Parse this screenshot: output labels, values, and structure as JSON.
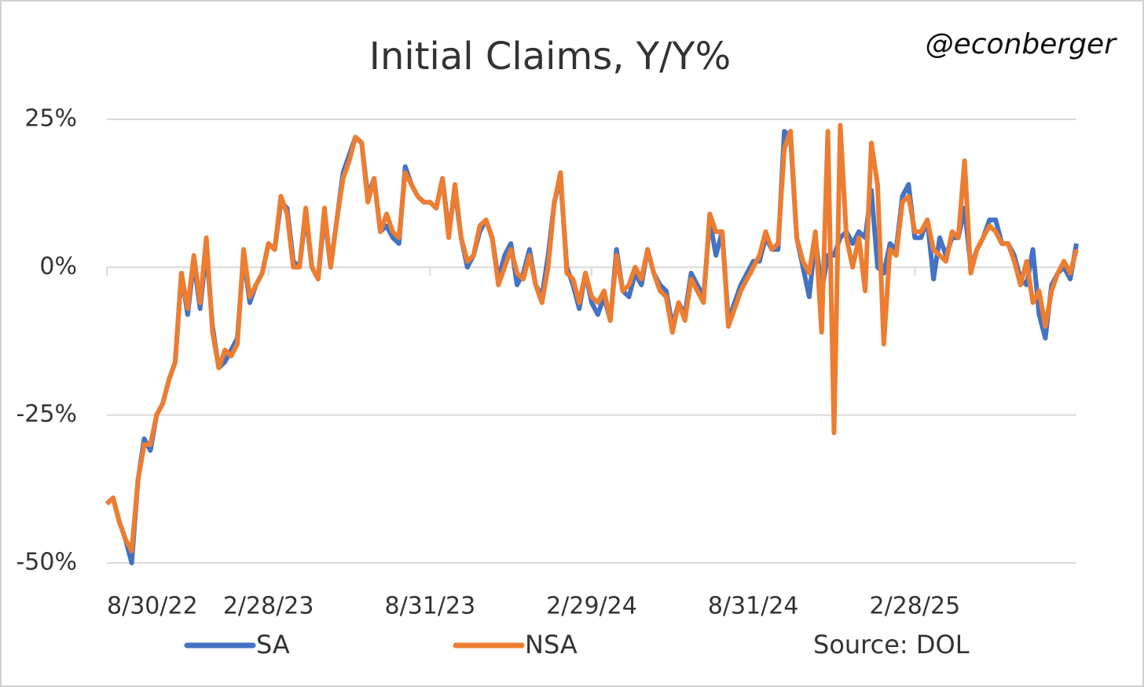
{
  "chart_data": {
    "type": "line",
    "title": "Initial Claims, Y/Y%",
    "annotations": [
      "@econberger",
      "Source: DOL"
    ],
    "categories": [
      "8/30/22",
      null,
      null,
      null,
      null,
      null,
      null,
      null,
      null,
      null,
      null,
      null,
      null,
      null,
      null,
      null,
      null,
      null,
      null,
      null,
      null,
      null,
      null,
      null,
      null,
      null,
      "2/28/23",
      null,
      null,
      null,
      null,
      null,
      null,
      null,
      null,
      null,
      null,
      null,
      null,
      null,
      null,
      null,
      null,
      null,
      null,
      null,
      null,
      null,
      null,
      null,
      null,
      null,
      "8/31/23",
      null,
      null,
      null,
      null,
      null,
      null,
      null,
      null,
      null,
      null,
      null,
      null,
      null,
      null,
      null,
      null,
      null,
      null,
      null,
      null,
      null,
      null,
      null,
      null,
      null,
      "2/29/24",
      null,
      null,
      null,
      null,
      null,
      null,
      null,
      null,
      null,
      null,
      null,
      null,
      null,
      null,
      null,
      null,
      null,
      null,
      null,
      null,
      null,
      null,
      null,
      null,
      null,
      "8/31/24",
      null,
      null,
      null,
      null,
      null,
      null,
      null,
      null,
      null,
      null,
      null,
      null,
      null,
      null,
      null,
      null,
      null,
      null,
      null,
      null,
      null,
      null,
      null,
      null,
      null,
      "2/28/25",
      null,
      null,
      null,
      null,
      null,
      null,
      null,
      null,
      null,
      null,
      null,
      null,
      null,
      null,
      null,
      null,
      null,
      null,
      null,
      null,
      null,
      null,
      null,
      null,
      null,
      null
    ],
    "series": [
      {
        "name": "SA",
        "color": "#4472c4",
        "values": [
          -40,
          -39,
          -43,
          -46,
          -50,
          -36,
          -29,
          -31,
          -25,
          -23,
          -19,
          -16,
          -1,
          -8,
          1,
          -7,
          3,
          -10,
          -17,
          -16,
          -14,
          -12,
          2,
          -6,
          -3,
          -1,
          4,
          3,
          11,
          10,
          1,
          0,
          9,
          0,
          -2,
          9,
          0,
          8,
          16,
          19,
          22,
          21,
          12,
          15,
          6,
          7,
          5,
          4,
          17,
          14,
          12,
          11,
          11,
          10,
          15,
          6,
          13,
          5,
          0,
          2,
          6,
          8,
          5,
          -2,
          2,
          4,
          -3,
          -1,
          3,
          -3,
          -5,
          2,
          11,
          15,
          0,
          -3,
          -7,
          -1,
          -6,
          -8,
          -5,
          -9,
          3,
          -4,
          -5,
          -1,
          -3,
          3,
          -1,
          -3,
          -4,
          -10,
          -6,
          -8,
          -1,
          -3,
          -5,
          8,
          2,
          6,
          -9,
          -6,
          -3,
          -1,
          1,
          1,
          5,
          3,
          3,
          23,
          22,
          5,
          0,
          -5,
          5,
          -4,
          2,
          2,
          5,
          6,
          4,
          6,
          5,
          13,
          0,
          -1,
          4,
          3,
          12,
          14,
          5,
          5,
          8,
          -2,
          5,
          2,
          5,
          5,
          10,
          0,
          3,
          5,
          8,
          8,
          4,
          4,
          2,
          -2,
          -3,
          3,
          -8,
          -12,
          -3,
          -1,
          0,
          -2,
          4
        ]
      },
      {
        "name": "NSA",
        "color": "#ed7d31",
        "values": [
          -40,
          -39,
          -43,
          -46,
          -48,
          -36,
          -30,
          -30,
          -25,
          -23,
          -19,
          -16,
          -1,
          -7,
          2,
          -6,
          5,
          -11,
          -17,
          -14,
          -15,
          -13,
          3,
          -5,
          -3,
          -1,
          4,
          3,
          12,
          9,
          0,
          0,
          10,
          0,
          -2,
          10,
          0,
          8,
          15,
          18,
          22,
          21,
          11,
          15,
          6,
          9,
          6,
          5,
          16,
          14,
          12,
          11,
          11,
          10,
          15,
          5,
          14,
          5,
          1,
          2,
          7,
          8,
          5,
          -3,
          0,
          3,
          -1,
          -2,
          2,
          -3,
          -6,
          0,
          11,
          16,
          -1,
          -2,
          -6,
          -1,
          -5,
          -6,
          -4,
          -9,
          2,
          -4,
          -3,
          0,
          -2,
          3,
          -1,
          -4,
          -5,
          -11,
          -6,
          -9,
          -2,
          -4,
          -6,
          9,
          6,
          6,
          -10,
          -7,
          -4,
          -2,
          0,
          2,
          6,
          3,
          4,
          20,
          23,
          5,
          1,
          -1,
          6,
          -11,
          23,
          -28,
          24,
          5,
          0,
          5,
          -4,
          21,
          14,
          -13,
          3,
          2,
          11,
          12,
          6,
          6,
          8,
          3,
          2,
          1,
          6,
          5,
          18,
          -1,
          3,
          5,
          7,
          6,
          4,
          4,
          1,
          -3,
          1,
          -6,
          -4,
          -10,
          -4,
          -1,
          1,
          -1,
          3
        ]
      }
    ],
    "ylim": [
      -50,
      25
    ],
    "yticks": [
      {
        "value": 25,
        "label": "25%"
      },
      {
        "value": 0,
        "label": "0%"
      },
      {
        "value": -25,
        "label": "-25%"
      },
      {
        "value": -50,
        "label": "-50%"
      }
    ],
    "grid": true,
    "legend": "bottom"
  }
}
